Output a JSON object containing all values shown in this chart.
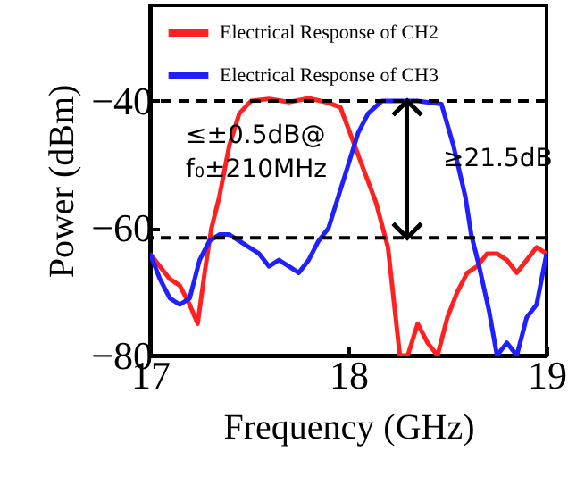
{
  "chart_data": {
    "type": "line",
    "xlabel": "Frequency (GHz)",
    "ylabel": "Power (dBm)",
    "xlim": [
      17,
      19
    ],
    "xticks": [
      {
        "value": 17,
        "label": "17"
      },
      {
        "value": 18,
        "label": "18"
      },
      {
        "value": 19,
        "label": "19"
      }
    ],
    "ylim": [
      -80,
      -25
    ],
    "yticks": [
      -80,
      -60,
      -40
    ],
    "legend": "top",
    "grid": false,
    "line_style": "solid",
    "marker": "none",
    "series": [
      {
        "name": "Electrical Response of CH2",
        "color": "#ff2020",
        "x": [
          17,
          17.05,
          17.1,
          17.15,
          17.2,
          17.24,
          17.28,
          17.31,
          17.35,
          17.4,
          17.45,
          17.51,
          17.6,
          17.7,
          17.8,
          17.9,
          17.96,
          18.02,
          18.08,
          18.14,
          18.2,
          18.26,
          18.3,
          18.35,
          18.4,
          18.45,
          18.5,
          18.55,
          18.6,
          18.65,
          18.7,
          18.75,
          18.8,
          18.85,
          18.9,
          18.95,
          19
        ],
        "values": [
          -64,
          -66,
          -68,
          -69,
          -72,
          -75,
          -66,
          -60,
          -55,
          -47,
          -42,
          -40,
          -39.7,
          -40.2,
          -39.6,
          -40.3,
          -41,
          -46,
          -51,
          -56,
          -63,
          -80,
          -80,
          -75,
          -78,
          -80,
          -74,
          -70,
          -67,
          -66,
          -64,
          -64,
          -65,
          -67,
          -65,
          -63,
          -64
        ]
      },
      {
        "name": "Electrical Response of CH3",
        "color": "#1f1fff",
        "x": [
          17,
          17.05,
          17.1,
          17.15,
          17.2,
          17.25,
          17.3,
          17.35,
          17.4,
          17.45,
          17.5,
          17.55,
          17.6,
          17.65,
          17.7,
          17.75,
          17.8,
          17.85,
          17.9,
          17.95,
          18,
          18.05,
          18.1,
          18.17,
          18.25,
          18.35,
          18.47,
          18.53,
          18.59,
          18.62,
          18.66,
          18.71,
          18.75,
          18.8,
          18.85,
          18.9,
          18.95,
          19
        ],
        "values": [
          -64,
          -68,
          -71,
          -72,
          -71,
          -65,
          -62,
          -61,
          -61,
          -62,
          -63,
          -64,
          -66,
          -65,
          -66,
          -67,
          -65,
          -62,
          -60,
          -55,
          -50,
          -45,
          -42,
          -40,
          -40,
          -40,
          -40.5,
          -47,
          -55,
          -61,
          -66,
          -73,
          -80,
          -78,
          -80,
          -74,
          -72,
          -64
        ]
      }
    ],
    "ref_lines": [
      {
        "axis": "y",
        "value": -40,
        "line_style": "dashed",
        "color": "#000000"
      },
      {
        "axis": "y",
        "value": -61.5,
        "line_style": "dashed",
        "color": "#000000"
      }
    ],
    "annotations": [
      "≤±0.5dB@",
      "f₀±210MHz",
      "≥21.5dB"
    ]
  }
}
